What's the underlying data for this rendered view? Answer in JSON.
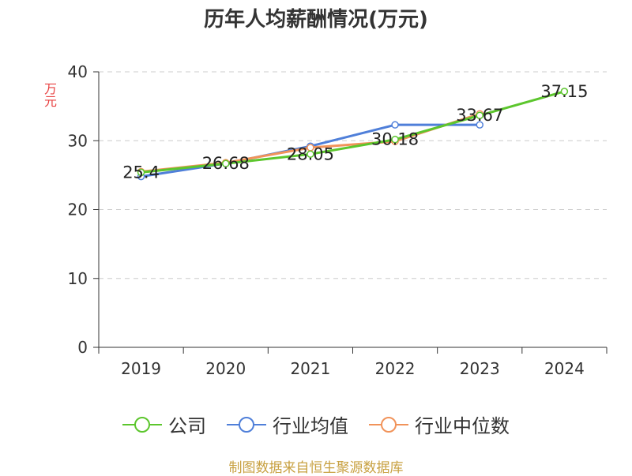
{
  "chart_data": {
    "type": "line",
    "title": "历年人均薪酬情况(万元)",
    "ylabel": "万元",
    "xlabel": "",
    "categories": [
      "2019",
      "2020",
      "2021",
      "2022",
      "2023",
      "2024"
    ],
    "ylim": [
      0,
      40
    ],
    "yticks": [
      "0",
      "10",
      "20",
      "30",
      "40"
    ],
    "grid": true,
    "legend_position": "bottom",
    "series": [
      {
        "name": "公司",
        "color": "#5cc62d",
        "values": [
          25.4,
          26.68,
          28.05,
          30.18,
          33.67,
          37.15
        ]
      },
      {
        "name": "行业均值",
        "color": "#4f7fd9",
        "values": [
          24.8,
          26.7,
          29.2,
          32.3,
          32.3,
          null
        ]
      },
      {
        "name": "行业中位数",
        "color": "#f1935a",
        "values": [
          25.5,
          26.8,
          29.0,
          29.9,
          33.9,
          null
        ]
      }
    ],
    "data_labels": [
      "25.4",
      "26.68",
      "28.05",
      "30.18",
      "33.67",
      "37.15"
    ],
    "source": "制图数据来自恒生聚源数据库"
  }
}
